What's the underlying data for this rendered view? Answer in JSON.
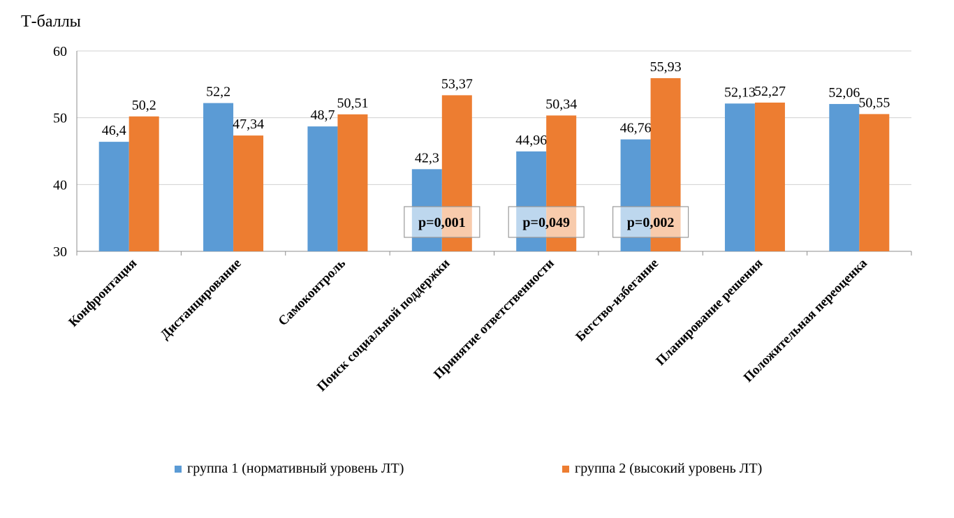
{
  "chart_data": {
    "type": "bar",
    "ylabel": "Т-баллы",
    "ylim": [
      30,
      60
    ],
    "yticks": [
      "30",
      "40",
      "50",
      "60"
    ],
    "categories": [
      "Конфронтация",
      "Дистанцирование",
      "Самоконтроль",
      "Поиск социальной поддержки",
      "Принятие ответственности",
      "Бегство-избегание",
      "Планирование решения",
      "Положительная переоценка"
    ],
    "series": [
      {
        "name": "группа 1 (нормативный уровень ЛТ)",
        "color": "#5B9BD5",
        "values": [
          46.4,
          52.2,
          48.7,
          42.3,
          44.96,
          46.76,
          52.13,
          52.06
        ],
        "labels": [
          "46,4",
          "52,2",
          "48,7",
          "42,3",
          "44,96",
          "46,76",
          "52,13",
          "52,06"
        ]
      },
      {
        "name": "группа 2 (высокий уровень ЛТ)",
        "color": "#ED7D31",
        "values": [
          50.2,
          47.34,
          50.51,
          53.37,
          50.34,
          55.93,
          52.27,
          50.55
        ],
        "labels": [
          "50,2",
          "47,34",
          "50,51",
          "53,37",
          "50,34",
          "55,93",
          "52,27",
          "50,55"
        ]
      }
    ],
    "annotations": [
      {
        "category_index": 3,
        "text": "p=0,001"
      },
      {
        "category_index": 4,
        "text": "p=0,049"
      },
      {
        "category_index": 5,
        "text": "p=0,002"
      }
    ],
    "grid": true,
    "legend": "bottom"
  }
}
